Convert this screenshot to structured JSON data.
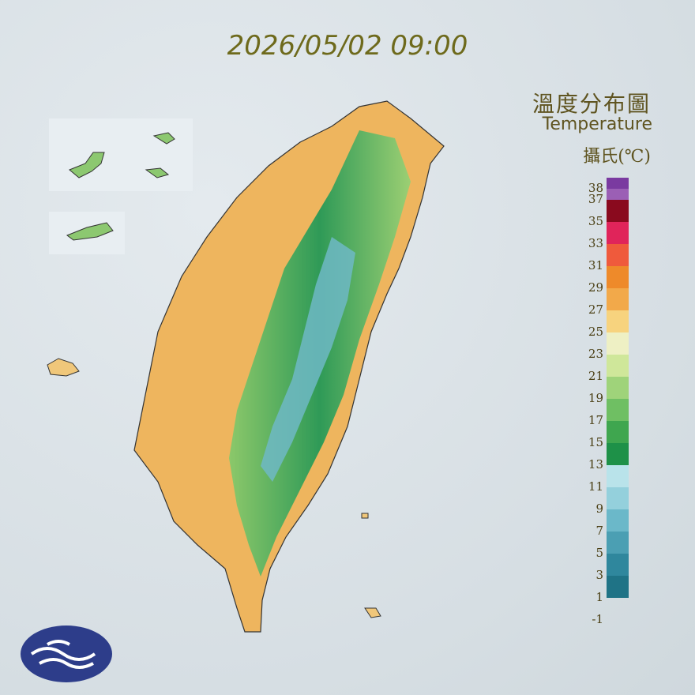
{
  "timestamp": "2026/05/02 09:00",
  "title": "溫度分布圖",
  "subtitle": "Temperature",
  "unit": "攝氏(℃)",
  "legend": {
    "labels": [
      38,
      37,
      35,
      33,
      31,
      29,
      27,
      25,
      23,
      21,
      19,
      17,
      15,
      13,
      11,
      9,
      7,
      5,
      3,
      1,
      -1
    ],
    "colors": [
      "#7a3aa0",
      "#9b5fb5",
      "#8a0a1e",
      "#e0245a",
      "#ef5a3c",
      "#ee8a2a",
      "#f2a94a",
      "#f7d37e",
      "#eef0c4",
      "#cfe79a",
      "#9fd37a",
      "#6fbf63",
      "#3fa64f",
      "#1e9148",
      "#b9e3ea",
      "#94d0dc",
      "#6bb8c9",
      "#4b9fb3",
      "#2f879d",
      "#1f7386",
      "#1f7386"
    ]
  }
}
